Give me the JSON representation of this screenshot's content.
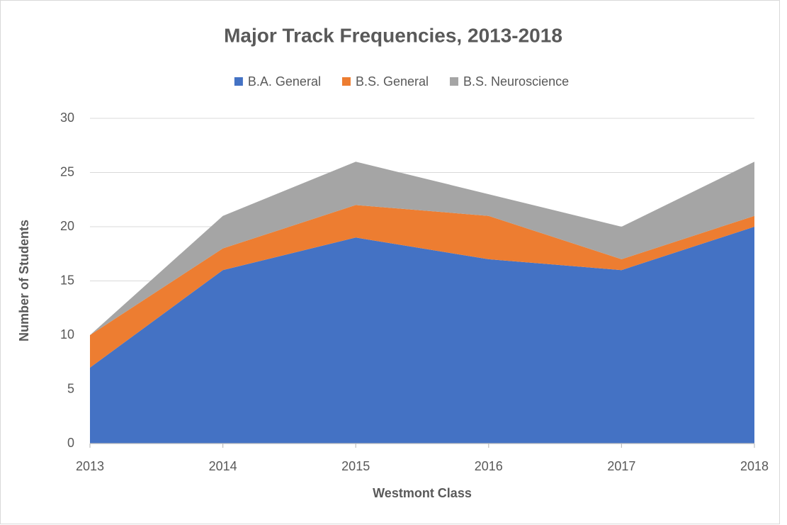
{
  "chart_data": {
    "type": "area",
    "stacked": true,
    "title": "Major Track Frequencies, 2013-2018",
    "x_label": "Westmont Class",
    "y_label": "Number of Students",
    "x": [
      2013,
      2014,
      2015,
      2016,
      2017,
      2018
    ],
    "xlim": [
      2013,
      2018
    ],
    "xticks": [
      2013,
      2014,
      2015,
      2016,
      2017,
      2018
    ],
    "ylim": [
      0,
      30
    ],
    "yticks": [
      0,
      5,
      10,
      15,
      20,
      25,
      30
    ],
    "grid": true,
    "legend": "top",
    "series": [
      {
        "name": "B.A. General",
        "color": "#4472c4",
        "values": [
          7,
          16,
          19,
          17,
          16,
          20
        ]
      },
      {
        "name": "B.S. General",
        "color": "#ed7d31",
        "values": [
          3,
          2,
          3,
          4,
          1,
          1
        ]
      },
      {
        "name": "B.S. Neuroscience",
        "color": "#a5a5a5",
        "values": [
          0,
          3,
          4,
          2,
          3,
          5
        ]
      }
    ]
  }
}
